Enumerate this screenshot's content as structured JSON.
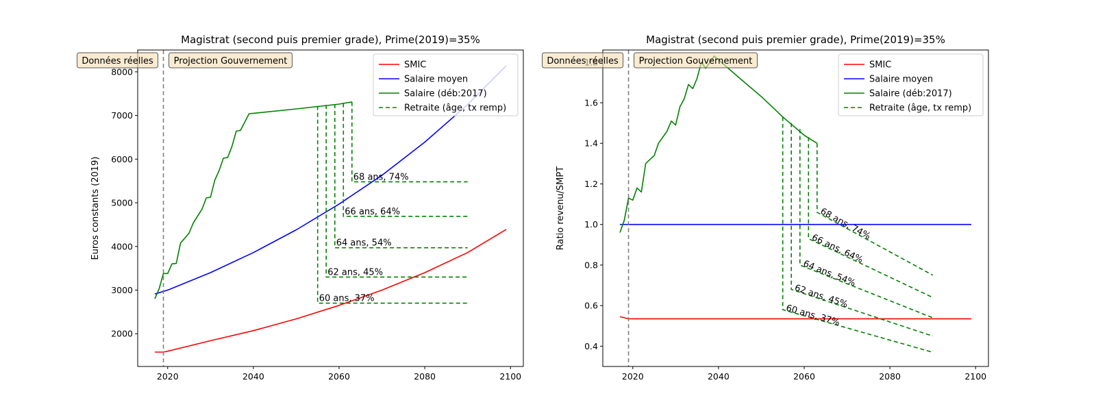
{
  "chart_data": [
    {
      "type": "line",
      "title": "Magistrat (second puis premier grade), Prime(2019)=35%",
      "xlabel": "",
      "ylabel": "Euros constants (2019)",
      "xlim": [
        2013,
        2103
      ],
      "ylim": [
        1250,
        8500
      ],
      "x_ticks": [
        2020,
        2040,
        2060,
        2080,
        2100
      ],
      "y_ticks": [
        2000,
        3000,
        4000,
        5000,
        6000,
        7000,
        8000
      ],
      "legend_position": "top-right",
      "boxes": {
        "left": "Données réelles",
        "right": "Projection Gouvernement"
      },
      "vline_x": 2019,
      "series": [
        {
          "name": "SMIC",
          "color": "#ff0000",
          "style": "solid",
          "x": [
            2017,
            2019,
            2020,
            2030,
            2040,
            2050,
            2060,
            2070,
            2080,
            2090,
            2099
          ],
          "values": [
            1580,
            1580,
            1600,
            1840,
            2070,
            2340,
            2650,
            3000,
            3400,
            3860,
            4390
          ]
        },
        {
          "name": "Salaire moyen",
          "color": "#0000ff",
          "style": "solid",
          "x": [
            2017,
            2020,
            2030,
            2040,
            2050,
            2060,
            2070,
            2080,
            2090,
            2099
          ],
          "values": [
            2910,
            3000,
            3400,
            3860,
            4380,
            4970,
            5630,
            6390,
            7250,
            8140
          ]
        },
        {
          "name": "Salaire (déb:2017)",
          "color": "#008000",
          "style": "solid",
          "x": [
            2017,
            2018,
            2019,
            2020,
            2021,
            2022,
            2023,
            2024,
            2025,
            2026,
            2027,
            2028,
            2029,
            2030,
            2031,
            2032,
            2033,
            2034,
            2035,
            2036,
            2037,
            2038,
            2039,
            2040,
            2050,
            2060,
            2063
          ],
          "values": [
            2800,
            3030,
            3380,
            3380,
            3600,
            3610,
            4080,
            4190,
            4310,
            4540,
            4700,
            4850,
            5110,
            5130,
            5520,
            5740,
            6020,
            6040,
            6290,
            6640,
            6660,
            6850,
            7040,
            7050,
            7150,
            7260,
            7310
          ]
        },
        {
          "name": "Retraite (âge, tx remp)",
          "color": "#008000",
          "style": "dashed",
          "x": [],
          "values": []
        }
      ],
      "retirement_lines": [
        {
          "label": "60 ans, 37%",
          "age_year": 2055,
          "salary": 7220,
          "x": [
            2055,
            2090
          ],
          "values": [
            2700,
            2700
          ]
        },
        {
          "label": "62 ans, 45%",
          "age_year": 2057,
          "salary": 7240,
          "x": [
            2057,
            2090
          ],
          "values": [
            3300,
            3300
          ]
        },
        {
          "label": "64 ans, 54%",
          "age_year": 2059,
          "salary": 7260,
          "x": [
            2059,
            2090
          ],
          "values": [
            3970,
            3970
          ]
        },
        {
          "label": "66 ans, 64%",
          "age_year": 2061,
          "salary": 7280,
          "x": [
            2061,
            2090
          ],
          "values": [
            4690,
            4690
          ]
        },
        {
          "label": "68 ans, 74%",
          "age_year": 2063,
          "salary": 7310,
          "x": [
            2063,
            2090
          ],
          "values": [
            5480,
            5480
          ]
        }
      ]
    },
    {
      "type": "line",
      "title": "Magistrat (second puis premier grade), Prime(2019)=35%",
      "xlabel": "",
      "ylabel": "Ratio revenu/SMPT",
      "xlim": [
        2013,
        2103
      ],
      "ylim": [
        0.3,
        1.86
      ],
      "x_ticks": [
        2020,
        2040,
        2060,
        2080,
        2100
      ],
      "y_ticks": [
        0.4,
        0.6,
        0.8,
        1.0,
        1.2,
        1.4,
        1.6,
        1.8
      ],
      "legend_position": "top-right",
      "boxes": {
        "left": "Données réelles",
        "right": "Projection Gouvernement"
      },
      "vline_x": 2019,
      "series": [
        {
          "name": "SMIC",
          "color": "#ff0000",
          "style": "solid",
          "x": [
            2017,
            2018,
            2019,
            2030,
            2099
          ],
          "values": [
            0.545,
            0.54,
            0.535,
            0.535,
            0.535
          ]
        },
        {
          "name": "Salaire moyen",
          "color": "#0000ff",
          "style": "solid",
          "x": [
            2017,
            2099
          ],
          "values": [
            1.0,
            1.0
          ]
        },
        {
          "name": "Salaire (déb:2017)",
          "color": "#008000",
          "style": "solid",
          "x": [
            2017,
            2018,
            2019,
            2020,
            2021,
            2022,
            2023,
            2024,
            2025,
            2026,
            2027,
            2028,
            2029,
            2030,
            2031,
            2032,
            2033,
            2034,
            2035,
            2036,
            2037,
            2038,
            2039,
            2045,
            2050,
            2055,
            2060,
            2063
          ],
          "values": [
            0.96,
            1.02,
            1.13,
            1.12,
            1.18,
            1.16,
            1.3,
            1.32,
            1.34,
            1.4,
            1.43,
            1.46,
            1.51,
            1.49,
            1.58,
            1.62,
            1.69,
            1.67,
            1.72,
            1.8,
            1.77,
            1.8,
            1.83,
            1.72,
            1.63,
            1.53,
            1.44,
            1.4
          ]
        },
        {
          "name": "Retraite (âge, tx remp)",
          "color": "#008000",
          "style": "dashed",
          "x": [],
          "values": []
        }
      ],
      "retirement_lines": [
        {
          "label": "60 ans, 37%",
          "age_year": 2055,
          "salary": 1.53,
          "x": [
            2055,
            2090
          ],
          "values": [
            0.58,
            0.37
          ]
        },
        {
          "label": "62 ans, 45%",
          "age_year": 2057,
          "salary": 1.5,
          "x": [
            2057,
            2090
          ],
          "values": [
            0.68,
            0.45
          ]
        },
        {
          "label": "64 ans, 54%",
          "age_year": 2059,
          "salary": 1.47,
          "x": [
            2059,
            2090
          ],
          "values": [
            0.8,
            0.54
          ]
        },
        {
          "label": "66 ans, 64%",
          "age_year": 2061,
          "salary": 1.43,
          "x": [
            2061,
            2090
          ],
          "values": [
            0.93,
            0.64
          ]
        },
        {
          "label": "68 ans, 74%",
          "age_year": 2063,
          "salary": 1.4,
          "x": [
            2063,
            2090
          ],
          "values": [
            1.06,
            0.75
          ]
        }
      ]
    }
  ]
}
